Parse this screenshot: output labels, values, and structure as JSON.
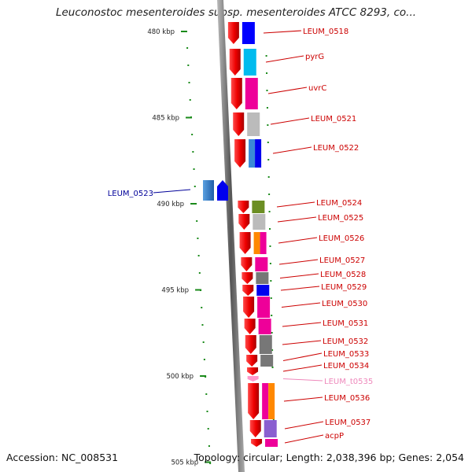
{
  "title": "Leuconostoc mesenteroides subsp. mesenteroides ATCC 8293, co...",
  "footer": {
    "accession": "Accession: NC_008531",
    "topology": "Topology: circular; Length: 2,038,396 bp; Genes: 2,054"
  },
  "axis_ticks": [
    {
      "label": "480 kbp",
      "kbp": 480
    },
    {
      "label": "485 kbp",
      "kbp": 485
    },
    {
      "label": "490 kbp",
      "kbp": 490
    },
    {
      "label": "495 kbp",
      "kbp": 495
    },
    {
      "label": "500 kbp",
      "kbp": 500
    },
    {
      "label": "505 kbp",
      "kbp": 505
    }
  ],
  "genes": [
    {
      "name": "LEUM_0518",
      "strand": "right",
      "color": "#cc0000"
    },
    {
      "name": "pyrG",
      "strand": "right",
      "color": "#cc0000"
    },
    {
      "name": "uvrC",
      "strand": "right",
      "color": "#cc0000"
    },
    {
      "name": "LEUM_0521",
      "strand": "right",
      "color": "#cc0000"
    },
    {
      "name": "LEUM_0522",
      "strand": "right",
      "color": "#cc0000"
    },
    {
      "name": "LEUM_0523",
      "strand": "left",
      "color": "#000099"
    },
    {
      "name": "LEUM_0524",
      "strand": "right",
      "color": "#cc0000"
    },
    {
      "name": "LEUM_0525",
      "strand": "right",
      "color": "#cc0000"
    },
    {
      "name": "LEUM_0526",
      "strand": "right",
      "color": "#cc0000"
    },
    {
      "name": "LEUM_0527",
      "strand": "right",
      "color": "#cc0000"
    },
    {
      "name": "LEUM_0528",
      "strand": "right",
      "color": "#cc0000"
    },
    {
      "name": "LEUM_0529",
      "strand": "right",
      "color": "#cc0000"
    },
    {
      "name": "LEUM_0530",
      "strand": "right",
      "color": "#cc0000"
    },
    {
      "name": "LEUM_0531",
      "strand": "right",
      "color": "#cc0000"
    },
    {
      "name": "LEUM_0532",
      "strand": "right",
      "color": "#cc0000"
    },
    {
      "name": "LEUM_0533",
      "strand": "right",
      "color": "#cc0000"
    },
    {
      "name": "LEUM_0534",
      "strand": "right",
      "color": "#cc0000"
    },
    {
      "name": "LEUM_t0535",
      "strand": "right",
      "color": "#ee88bb"
    },
    {
      "name": "LEUM_0536",
      "strand": "right",
      "color": "#cc0000"
    },
    {
      "name": "LEUM_0537",
      "strand": "right",
      "color": "#cc0000"
    },
    {
      "name": "acpP",
      "strand": "right",
      "color": "#cc0000"
    }
  ],
  "colors": {
    "axis": "#777777",
    "tick": "#1a8a1a",
    "gene_arrow": "#ee0000",
    "rna_arrow": "#ff99cc"
  }
}
